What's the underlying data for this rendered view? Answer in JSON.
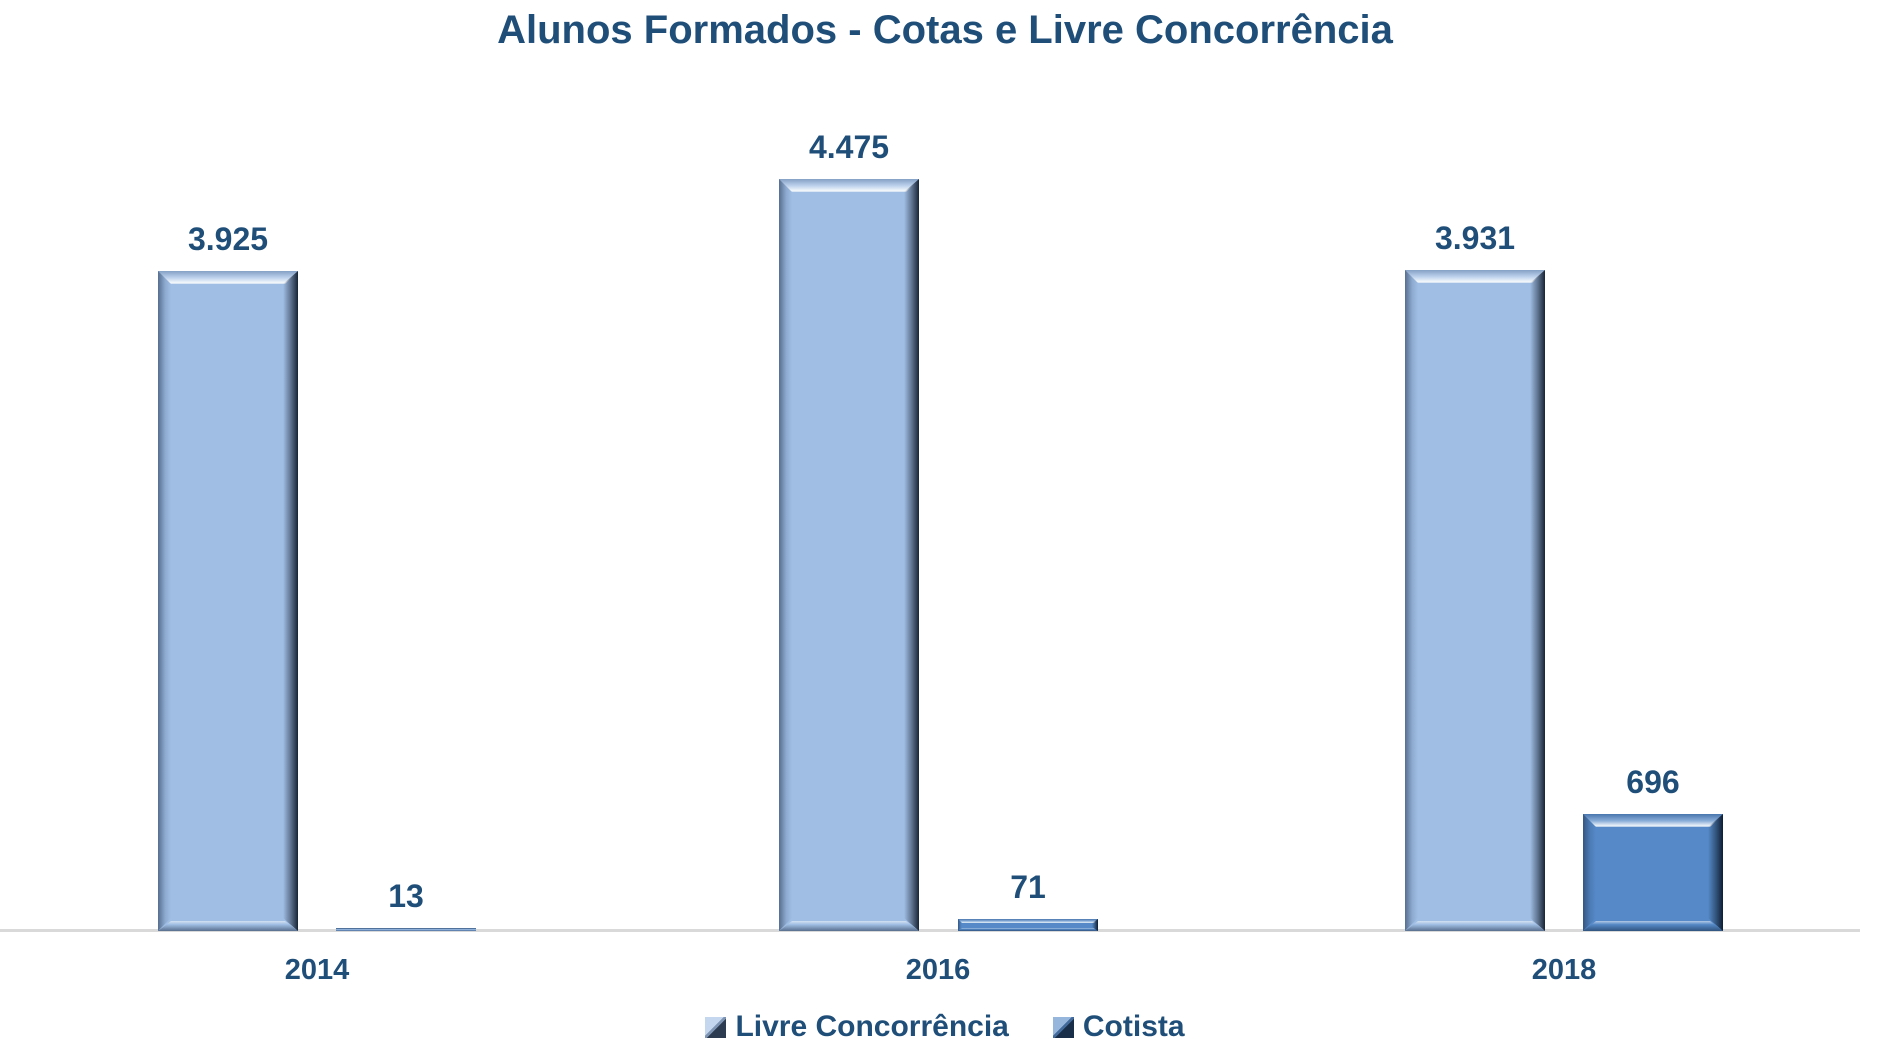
{
  "title": "Alunos Formados - Cotas e Livre Concorrência",
  "colors": {
    "text": "#1F4E79",
    "axis_line": "#D9D9D9",
    "background": "#FFFFFF",
    "livre_concorrencia": "#A0BEE4",
    "cotista": "#5589C7"
  },
  "chart_data": {
    "type": "bar",
    "title": "Alunos Formados - Cotas e Livre Concorrência",
    "categories": [
      "2014",
      "2016",
      "2018"
    ],
    "series": [
      {
        "name": "Livre Concorrência",
        "color": "#A0BEE4",
        "values": [
          3925,
          4475,
          3931
        ],
        "labels": [
          "3.925",
          "4.475",
          "3.931"
        ]
      },
      {
        "name": "Cotista",
        "color": "#5589C7",
        "values": [
          13,
          71,
          696
        ],
        "labels": [
          "13",
          "71",
          "696"
        ]
      }
    ],
    "xlabel": "",
    "ylabel": "",
    "ylim": [
      0,
      5000
    ],
    "grid": false,
    "value_labels": true,
    "legend_position": "bottom",
    "bar_style": "3d-bevel"
  }
}
